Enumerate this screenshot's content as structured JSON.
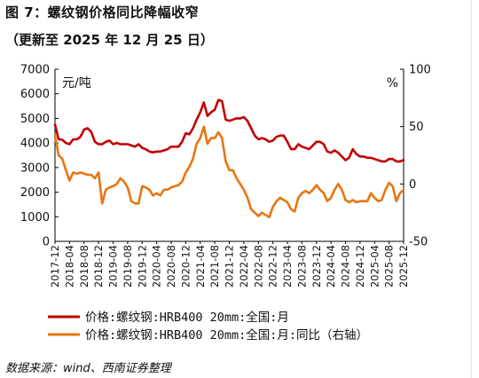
{
  "header": {
    "title": "图 7：螺纹钢价格同比降幅收窄",
    "subtitle": "（更新至 2025 年 12 月 25 日）"
  },
  "footer": {
    "source": "数据来源：wind、西南证券整理"
  },
  "chart_data": {
    "type": "line",
    "left_unit": "元/吨",
    "right_unit": "%",
    "y_left": {
      "min": 0,
      "max": 7000,
      "ticks": [
        0,
        1000,
        2000,
        3000,
        4000,
        5000,
        6000,
        7000
      ]
    },
    "y_right": {
      "min": -50,
      "max": 100,
      "ticks": [
        -50,
        0,
        50,
        100
      ]
    },
    "grid": false,
    "legend_position": "bottom",
    "x_ticks": [
      "2017-12",
      "2018-04",
      "2018-08",
      "2018-12",
      "2019-04",
      "2019-08",
      "2019-12",
      "2020-04",
      "2020-08",
      "2020-12",
      "2021-04",
      "2021-08",
      "2021-12",
      "2022-04",
      "2022-08",
      "2022-12",
      "2023-04",
      "2023-08",
      "2023-12",
      "2024-04",
      "2024-08",
      "2024-12",
      "2025-04",
      "2025-08",
      "2025-12"
    ],
    "series": [
      {
        "name": "价格:螺纹钢:HRB400 20mm:全国:月",
        "axis": "left",
        "color": "#c00000",
        "values": [
          [
            "2017-12",
            4750
          ],
          [
            "2018-01",
            4150
          ],
          [
            "2018-02",
            4130
          ],
          [
            "2018-03",
            4000
          ],
          [
            "2018-04",
            3950
          ],
          [
            "2018-05",
            4150
          ],
          [
            "2018-06",
            4150
          ],
          [
            "2018-07",
            4250
          ],
          [
            "2018-08",
            4550
          ],
          [
            "2018-09",
            4600
          ],
          [
            "2018-10",
            4450
          ],
          [
            "2018-11",
            4050
          ],
          [
            "2018-12",
            3950
          ],
          [
            "2019-01",
            3950
          ],
          [
            "2019-02",
            4050
          ],
          [
            "2019-03",
            4100
          ],
          [
            "2019-04",
            3950
          ],
          [
            "2019-05",
            4000
          ],
          [
            "2019-06",
            3950
          ],
          [
            "2019-07",
            3950
          ],
          [
            "2019-08",
            3950
          ],
          [
            "2019-09",
            3900
          ],
          [
            "2019-10",
            3850
          ],
          [
            "2019-11",
            3950
          ],
          [
            "2019-12",
            3800
          ],
          [
            "2020-01",
            3750
          ],
          [
            "2020-02",
            3650
          ],
          [
            "2020-03",
            3620
          ],
          [
            "2020-04",
            3650
          ],
          [
            "2020-05",
            3650
          ],
          [
            "2020-06",
            3700
          ],
          [
            "2020-07",
            3750
          ],
          [
            "2020-08",
            3850
          ],
          [
            "2020-09",
            3850
          ],
          [
            "2020-10",
            3850
          ],
          [
            "2020-11",
            4050
          ],
          [
            "2020-12",
            4400
          ],
          [
            "2021-01",
            4350
          ],
          [
            "2021-02",
            4600
          ],
          [
            "2021-03",
            4950
          ],
          [
            "2021-04",
            5250
          ],
          [
            "2021-05",
            5650
          ],
          [
            "2021-06",
            5100
          ],
          [
            "2021-07",
            5250
          ],
          [
            "2021-08",
            5350
          ],
          [
            "2021-09",
            5750
          ],
          [
            "2021-10",
            5700
          ],
          [
            "2021-11",
            4950
          ],
          [
            "2021-12",
            4900
          ],
          [
            "2022-01",
            4950
          ],
          [
            "2022-02",
            5000
          ],
          [
            "2022-03",
            5000
          ],
          [
            "2022-04",
            5050
          ],
          [
            "2022-05",
            4900
          ],
          [
            "2022-06",
            4600
          ],
          [
            "2022-07",
            4300
          ],
          [
            "2022-08",
            4150
          ],
          [
            "2022-09",
            4200
          ],
          [
            "2022-10",
            4150
          ],
          [
            "2022-11",
            4050
          ],
          [
            "2022-12",
            4100
          ],
          [
            "2023-01",
            4250
          ],
          [
            "2023-02",
            4300
          ],
          [
            "2023-03",
            4300
          ],
          [
            "2023-04",
            4050
          ],
          [
            "2023-05",
            3750
          ],
          [
            "2023-06",
            3750
          ],
          [
            "2023-07",
            3950
          ],
          [
            "2023-08",
            3850
          ],
          [
            "2023-09",
            3800
          ],
          [
            "2023-10",
            3750
          ],
          [
            "2023-11",
            3900
          ],
          [
            "2023-12",
            4050
          ],
          [
            "2024-01",
            4050
          ],
          [
            "2024-02",
            3950
          ],
          [
            "2024-03",
            3650
          ],
          [
            "2024-04",
            3600
          ],
          [
            "2024-05",
            3700
          ],
          [
            "2024-06",
            3600
          ],
          [
            "2024-07",
            3450
          ],
          [
            "2024-08",
            3300
          ],
          [
            "2024-09",
            3400
          ],
          [
            "2024-10",
            3750
          ],
          [
            "2024-11",
            3550
          ],
          [
            "2024-12",
            3450
          ],
          [
            "2025-01",
            3450
          ],
          [
            "2025-02",
            3400
          ],
          [
            "2025-03",
            3400
          ],
          [
            "2025-04",
            3350
          ],
          [
            "2025-05",
            3300
          ],
          [
            "2025-06",
            3250
          ],
          [
            "2025-07",
            3250
          ],
          [
            "2025-08",
            3350
          ],
          [
            "2025-09",
            3350
          ],
          [
            "2025-10",
            3250
          ],
          [
            "2025-11",
            3250
          ],
          [
            "2025-12",
            3300
          ]
        ]
      },
      {
        "name": "价格:螺纹钢:HRB400 20mm:全国:月:同比（右轴）",
        "axis": "right",
        "color": "#e87511",
        "values": [
          [
            "2017-12",
            42
          ],
          [
            "2018-01",
            25
          ],
          [
            "2018-02",
            22
          ],
          [
            "2018-03",
            12
          ],
          [
            "2018-04",
            3
          ],
          [
            "2018-05",
            10
          ],
          [
            "2018-06",
            9
          ],
          [
            "2018-07",
            10
          ],
          [
            "2018-08",
            9
          ],
          [
            "2018-09",
            8
          ],
          [
            "2018-10",
            8
          ],
          [
            "2018-11",
            5
          ],
          [
            "2018-12",
            10
          ],
          [
            "2019-01",
            -17
          ],
          [
            "2019-02",
            -5
          ],
          [
            "2019-03",
            -3
          ],
          [
            "2019-04",
            -2
          ],
          [
            "2019-05",
            0
          ],
          [
            "2019-06",
            5
          ],
          [
            "2019-07",
            2
          ],
          [
            "2019-08",
            -3
          ],
          [
            "2019-09",
            -15
          ],
          [
            "2019-10",
            -17
          ],
          [
            "2019-11",
            -17
          ],
          [
            "2019-12",
            -2
          ],
          [
            "2020-01",
            -3
          ],
          [
            "2020-02",
            -5
          ],
          [
            "2020-03",
            -10
          ],
          [
            "2020-04",
            -8
          ],
          [
            "2020-05",
            -10
          ],
          [
            "2020-06",
            -5
          ],
          [
            "2020-07",
            -5
          ],
          [
            "2020-08",
            -3
          ],
          [
            "2020-09",
            -2
          ],
          [
            "2020-10",
            -1
          ],
          [
            "2020-11",
            2
          ],
          [
            "2020-12",
            10
          ],
          [
            "2021-01",
            15
          ],
          [
            "2021-02",
            22
          ],
          [
            "2021-03",
            35
          ],
          [
            "2021-04",
            40
          ],
          [
            "2021-05",
            50
          ],
          [
            "2021-06",
            35
          ],
          [
            "2021-07",
            40
          ],
          [
            "2021-08",
            40
          ],
          [
            "2021-09",
            45
          ],
          [
            "2021-10",
            40
          ],
          [
            "2021-11",
            20
          ],
          [
            "2021-12",
            12
          ],
          [
            "2022-01",
            12
          ],
          [
            "2022-02",
            5
          ],
          [
            "2022-03",
            0
          ],
          [
            "2022-04",
            -5
          ],
          [
            "2022-05",
            -12
          ],
          [
            "2022-06",
            -22
          ],
          [
            "2022-07",
            -25
          ],
          [
            "2022-08",
            -28
          ],
          [
            "2022-09",
            -25
          ],
          [
            "2022-10",
            -27
          ],
          [
            "2022-11",
            -29
          ],
          [
            "2022-12",
            -20
          ],
          [
            "2023-01",
            -15
          ],
          [
            "2023-02",
            -12
          ],
          [
            "2023-03",
            -14
          ],
          [
            "2023-04",
            -16
          ],
          [
            "2023-05",
            -22
          ],
          [
            "2023-06",
            -24
          ],
          [
            "2023-07",
            -12
          ],
          [
            "2023-08",
            -8
          ],
          [
            "2023-09",
            -6
          ],
          [
            "2023-10",
            -8
          ],
          [
            "2023-11",
            -5
          ],
          [
            "2023-12",
            -1
          ],
          [
            "2024-01",
            -5
          ],
          [
            "2024-02",
            -8
          ],
          [
            "2024-03",
            -15
          ],
          [
            "2024-04",
            -12
          ],
          [
            "2024-05",
            -5
          ],
          [
            "2024-06",
            0
          ],
          [
            "2024-07",
            -5
          ],
          [
            "2024-08",
            -14
          ],
          [
            "2024-09",
            -16
          ],
          [
            "2024-10",
            -14
          ],
          [
            "2024-11",
            -16
          ],
          [
            "2024-12",
            -15
          ],
          [
            "2025-01",
            -15
          ],
          [
            "2025-02",
            -15
          ],
          [
            "2025-03",
            -8
          ],
          [
            "2025-04",
            -12
          ],
          [
            "2025-05",
            -15
          ],
          [
            "2025-06",
            -14
          ],
          [
            "2025-07",
            -5
          ],
          [
            "2025-08",
            1
          ],
          [
            "2025-09",
            -2
          ],
          [
            "2025-10",
            -15
          ],
          [
            "2025-11",
            -8
          ],
          [
            "2025-12",
            -5
          ]
        ]
      }
    ]
  }
}
